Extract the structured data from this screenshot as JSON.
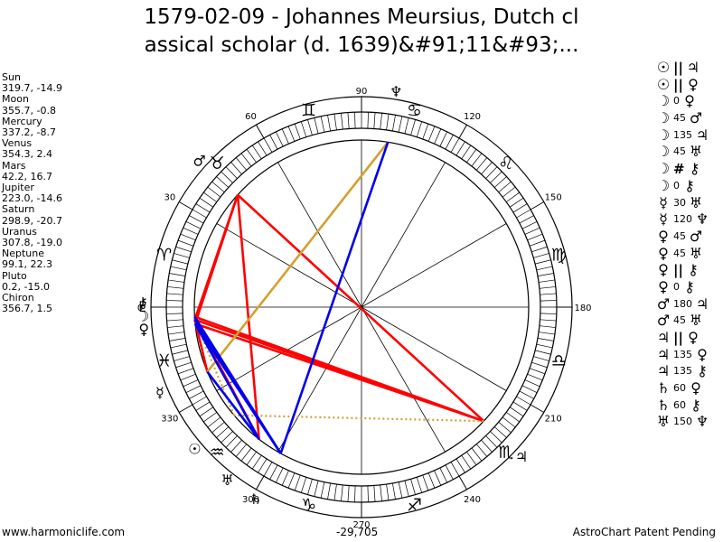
{
  "title": {
    "line1": "1579-02-09 - Johannes Meursius, Dutch cl",
    "line2": "assical scholar (d. 1639)&#91;11&#93;..."
  },
  "planets": [
    {
      "name": "Sun",
      "position": "319.7, -14.9"
    },
    {
      "name": "Moon",
      "position": "355.7, -0.8"
    },
    {
      "name": "Mercury",
      "position": "337.2, -8.7"
    },
    {
      "name": "Venus",
      "position": "354.3, 2.4"
    },
    {
      "name": "Mars",
      "position": "42.2, 16.7"
    },
    {
      "name": "Jupiter",
      "position": "223.0, -14.6"
    },
    {
      "name": "Saturn",
      "position": "298.9, -20.7"
    },
    {
      "name": "Uranus",
      "position": "307.8, -19.0"
    },
    {
      "name": "Neptune",
      "position": "99.1, 22.3"
    },
    {
      "name": "Pluto",
      "position": "0.2, -15.0"
    },
    {
      "name": "Chiron",
      "position": "356.7, 1.5"
    }
  ],
  "aspects": [
    {
      "p1": "☉",
      "sep": "||",
      "p2": "♃"
    },
    {
      "p1": "☉",
      "sep": "||",
      "p2": "♀"
    },
    {
      "p1": "☽",
      "sep": "0",
      "p2": "♀"
    },
    {
      "p1": "☽",
      "sep": "45",
      "p2": "♂"
    },
    {
      "p1": "☽",
      "sep": "135",
      "p2": "♃"
    },
    {
      "p1": "☽",
      "sep": "45",
      "p2": "♅"
    },
    {
      "p1": "☽",
      "sep": "#",
      "p2": "⚷"
    },
    {
      "p1": "☽",
      "sep": "0",
      "p2": "⚷"
    },
    {
      "p1": "☿",
      "sep": "30",
      "p2": "♅"
    },
    {
      "p1": "☿",
      "sep": "120",
      "p2": "♆"
    },
    {
      "p1": "♀",
      "sep": "45",
      "p2": "♂"
    },
    {
      "p1": "♀",
      "sep": "45",
      "p2": "♅"
    },
    {
      "p1": "♀",
      "sep": "||",
      "p2": "⚷"
    },
    {
      "p1": "♀",
      "sep": "0",
      "p2": "⚷"
    },
    {
      "p1": "♂",
      "sep": "180",
      "p2": "♃"
    },
    {
      "p1": "♂",
      "sep": "45",
      "p2": "♅"
    },
    {
      "p1": "♃",
      "sep": "||",
      "p2": "♀"
    },
    {
      "p1": "♃",
      "sep": "135",
      "p2": "♀"
    },
    {
      "p1": "♃",
      "sep": "135",
      "p2": "⚷"
    },
    {
      "p1": "♄",
      "sep": "60",
      "p2": "♀"
    },
    {
      "p1": "♄",
      "sep": "60",
      "p2": "⚷"
    },
    {
      "p1": "♅",
      "sep": "150",
      "p2": "♆"
    }
  ],
  "wheel": {
    "degree_labels": [
      "0",
      "30",
      "60",
      "90",
      "120",
      "150",
      "180",
      "210",
      "240",
      "270",
      "300",
      "330"
    ],
    "signs": [
      {
        "name": "aries-sign",
        "glyph": "♈",
        "lon": 15
      },
      {
        "name": "taurus-sign",
        "glyph": "♉",
        "lon": 45
      },
      {
        "name": "gemini-sign",
        "glyph": "♊",
        "lon": 75
      },
      {
        "name": "cancer-sign",
        "glyph": "♋",
        "lon": 105
      },
      {
        "name": "leo-sign",
        "glyph": "♌",
        "lon": 135
      },
      {
        "name": "virgo-sign",
        "glyph": "♍",
        "lon": 165
      },
      {
        "name": "libra-sign",
        "glyph": "♎",
        "lon": 195
      },
      {
        "name": "scorpio-sign",
        "glyph": "♏",
        "lon": 225
      },
      {
        "name": "sagittarius-sign",
        "glyph": "♐",
        "lon": 255
      },
      {
        "name": "capricorn-sign",
        "glyph": "♑",
        "lon": 285
      },
      {
        "name": "aquarius-sign",
        "glyph": "♒",
        "lon": 315
      },
      {
        "name": "pisces-sign",
        "glyph": "♓",
        "lon": 345
      }
    ],
    "bodies": [
      {
        "name": "sun-glyph",
        "glyph": "☉",
        "lon": 319.7
      },
      {
        "name": "moon-glyph",
        "glyph": "☽",
        "lon": 355.7
      },
      {
        "name": "mercury-glyph",
        "glyph": "☿",
        "lon": 337.2
      },
      {
        "name": "venus-glyph",
        "glyph": "♀",
        "lon": 354.3
      },
      {
        "name": "mars-glyph",
        "glyph": "♂",
        "lon": 42.2
      },
      {
        "name": "jupiter-glyph",
        "glyph": "♃",
        "lon": 223.0
      },
      {
        "name": "saturn-glyph",
        "glyph": "♄",
        "lon": 298.9
      },
      {
        "name": "uranus-glyph",
        "glyph": "♅",
        "lon": 307.8
      },
      {
        "name": "neptune-glyph",
        "glyph": "♆",
        "lon": 99.1
      },
      {
        "name": "pluto-glyph",
        "glyph": "♇",
        "lon": 0.2
      },
      {
        "name": "chiron-glyph",
        "glyph": "⚷",
        "lon": 356.7
      }
    ],
    "aspect_lines": [
      {
        "from": 42.2,
        "to": 355.7,
        "color": "#ff0000",
        "style": "solid"
      },
      {
        "from": 42.2,
        "to": 354.3,
        "color": "#ff0000",
        "style": "solid"
      },
      {
        "from": 42.2,
        "to": 223.0,
        "color": "#ff0000",
        "style": "solid"
      },
      {
        "from": 223.0,
        "to": 355.7,
        "color": "#ff0000",
        "style": "solid"
      },
      {
        "from": 223.0,
        "to": 354.3,
        "color": "#ff0000",
        "style": "solid"
      },
      {
        "from": 223.0,
        "to": 356.7,
        "color": "#ff0000",
        "style": "solid"
      },
      {
        "from": 307.8,
        "to": 355.7,
        "color": "#ff0000",
        "style": "solid"
      },
      {
        "from": 307.8,
        "to": 42.2,
        "color": "#ff0000",
        "style": "solid"
      },
      {
        "from": 337.2,
        "to": 355.7,
        "color": "#ff0000",
        "style": "solid"
      },
      {
        "from": 99.1,
        "to": 337.2,
        "color": "#d4a030",
        "style": "solid"
      },
      {
        "from": 337.2,
        "to": 307.8,
        "color": "#d4a030",
        "style": "dotted"
      },
      {
        "from": 223.0,
        "to": 319.7,
        "color": "#d4a030",
        "style": "dotted"
      },
      {
        "from": 319.7,
        "to": 355.7,
        "color": "#d4a030",
        "style": "dotted"
      },
      {
        "from": 99.1,
        "to": 298.9,
        "color": "#0000ee",
        "style": "solid"
      },
      {
        "from": 298.9,
        "to": 355.7,
        "color": "#0000ee",
        "style": "solid"
      },
      {
        "from": 298.9,
        "to": 356.7,
        "color": "#0000ee",
        "style": "solid"
      },
      {
        "from": 298.9,
        "to": 354.3,
        "color": "#0000ee",
        "style": "solid"
      },
      {
        "from": 307.8,
        "to": 354.3,
        "color": "#0000ee",
        "style": "solid"
      },
      {
        "from": 307.8,
        "to": 337.2,
        "color": "#0000ee",
        "style": "solid"
      }
    ]
  },
  "footer": {
    "site": "www.harmoniclife.com",
    "number": "-29,705",
    "notice": "AstroChart Patent Pending"
  },
  "colors": {
    "hard_aspect": "#ff0000",
    "soft_aspect": "#0000ee",
    "minor_aspect": "#d4a030"
  }
}
